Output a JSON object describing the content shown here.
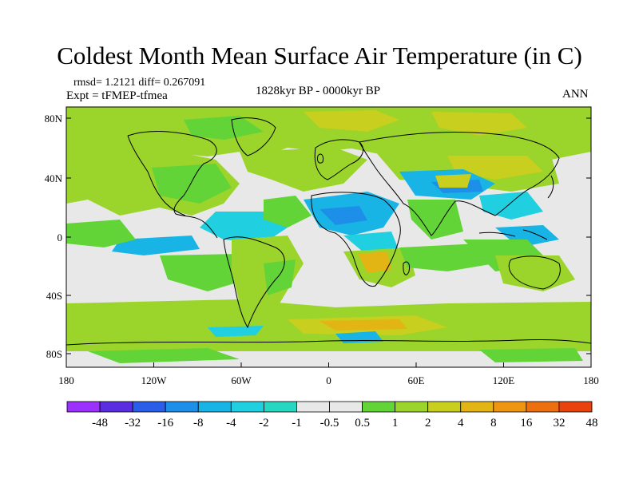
{
  "title": "Coldest Month Mean Surface Air Temperature (in C)",
  "stats_line1": "rmsd= 1.2121  diff= 0.267091",
  "stats_line2": "Expt = tFMEP-tfmea",
  "period": "1828kyr BP - 0000kyr BP",
  "season": "ANN",
  "map": {
    "lat_ticks": [
      "80N",
      "40N",
      "0",
      "40S",
      "80S"
    ],
    "lon_ticks": [
      "180",
      "120W",
      "60W",
      "0",
      "60E",
      "120E",
      "180"
    ]
  },
  "colorbar": {
    "colors": [
      "#9b30ff",
      "#5a2ee0",
      "#2a5ee8",
      "#1e8fe8",
      "#19b4e6",
      "#20cfe0",
      "#28d7c2",
      "#e8e8e8",
      "#e8e8e8",
      "#62d437",
      "#9bd42b",
      "#c8cf1f",
      "#e2b515",
      "#ee9611",
      "#ec6f10",
      "#e8420d"
    ],
    "labels": [
      "-48",
      "-32",
      "-16",
      "-8",
      "-4",
      "-2",
      "-1",
      "-0.5",
      "0.5",
      "1",
      "2",
      "4",
      "8",
      "16",
      "32",
      "48"
    ]
  }
}
